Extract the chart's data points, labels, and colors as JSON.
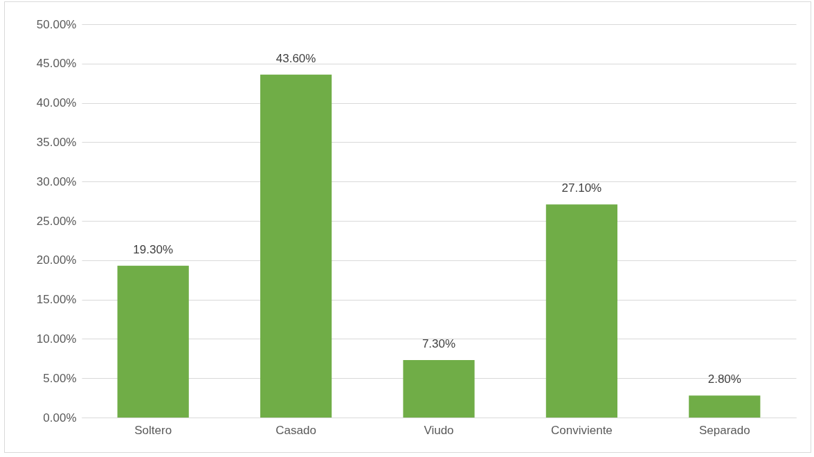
{
  "chart_data": {
    "type": "bar",
    "categories": [
      "Soltero",
      "Casado",
      "Viudo",
      "Conviviente",
      "Separado"
    ],
    "values": [
      19.3,
      43.6,
      7.3,
      27.1,
      2.8
    ],
    "value_labels": [
      "19.30%",
      "43.60%",
      "7.30%",
      "27.10%",
      "2.80%"
    ],
    "color": "#70ad47",
    "ylim": [
      0,
      50
    ],
    "yticks": [
      {
        "value": 0,
        "label": "0.00%"
      },
      {
        "value": 5,
        "label": "5.00%"
      },
      {
        "value": 10,
        "label": "10.00%"
      },
      {
        "value": 15,
        "label": "15.00%"
      },
      {
        "value": 20,
        "label": "20.00%"
      },
      {
        "value": 25,
        "label": "25.00%"
      },
      {
        "value": 30,
        "label": "30.00%"
      },
      {
        "value": 35,
        "label": "35.00%"
      },
      {
        "value": 40,
        "label": "40.00%"
      },
      {
        "value": 45,
        "label": "45.00%"
      },
      {
        "value": 50,
        "label": "50.00%"
      }
    ],
    "grid": "y"
  }
}
